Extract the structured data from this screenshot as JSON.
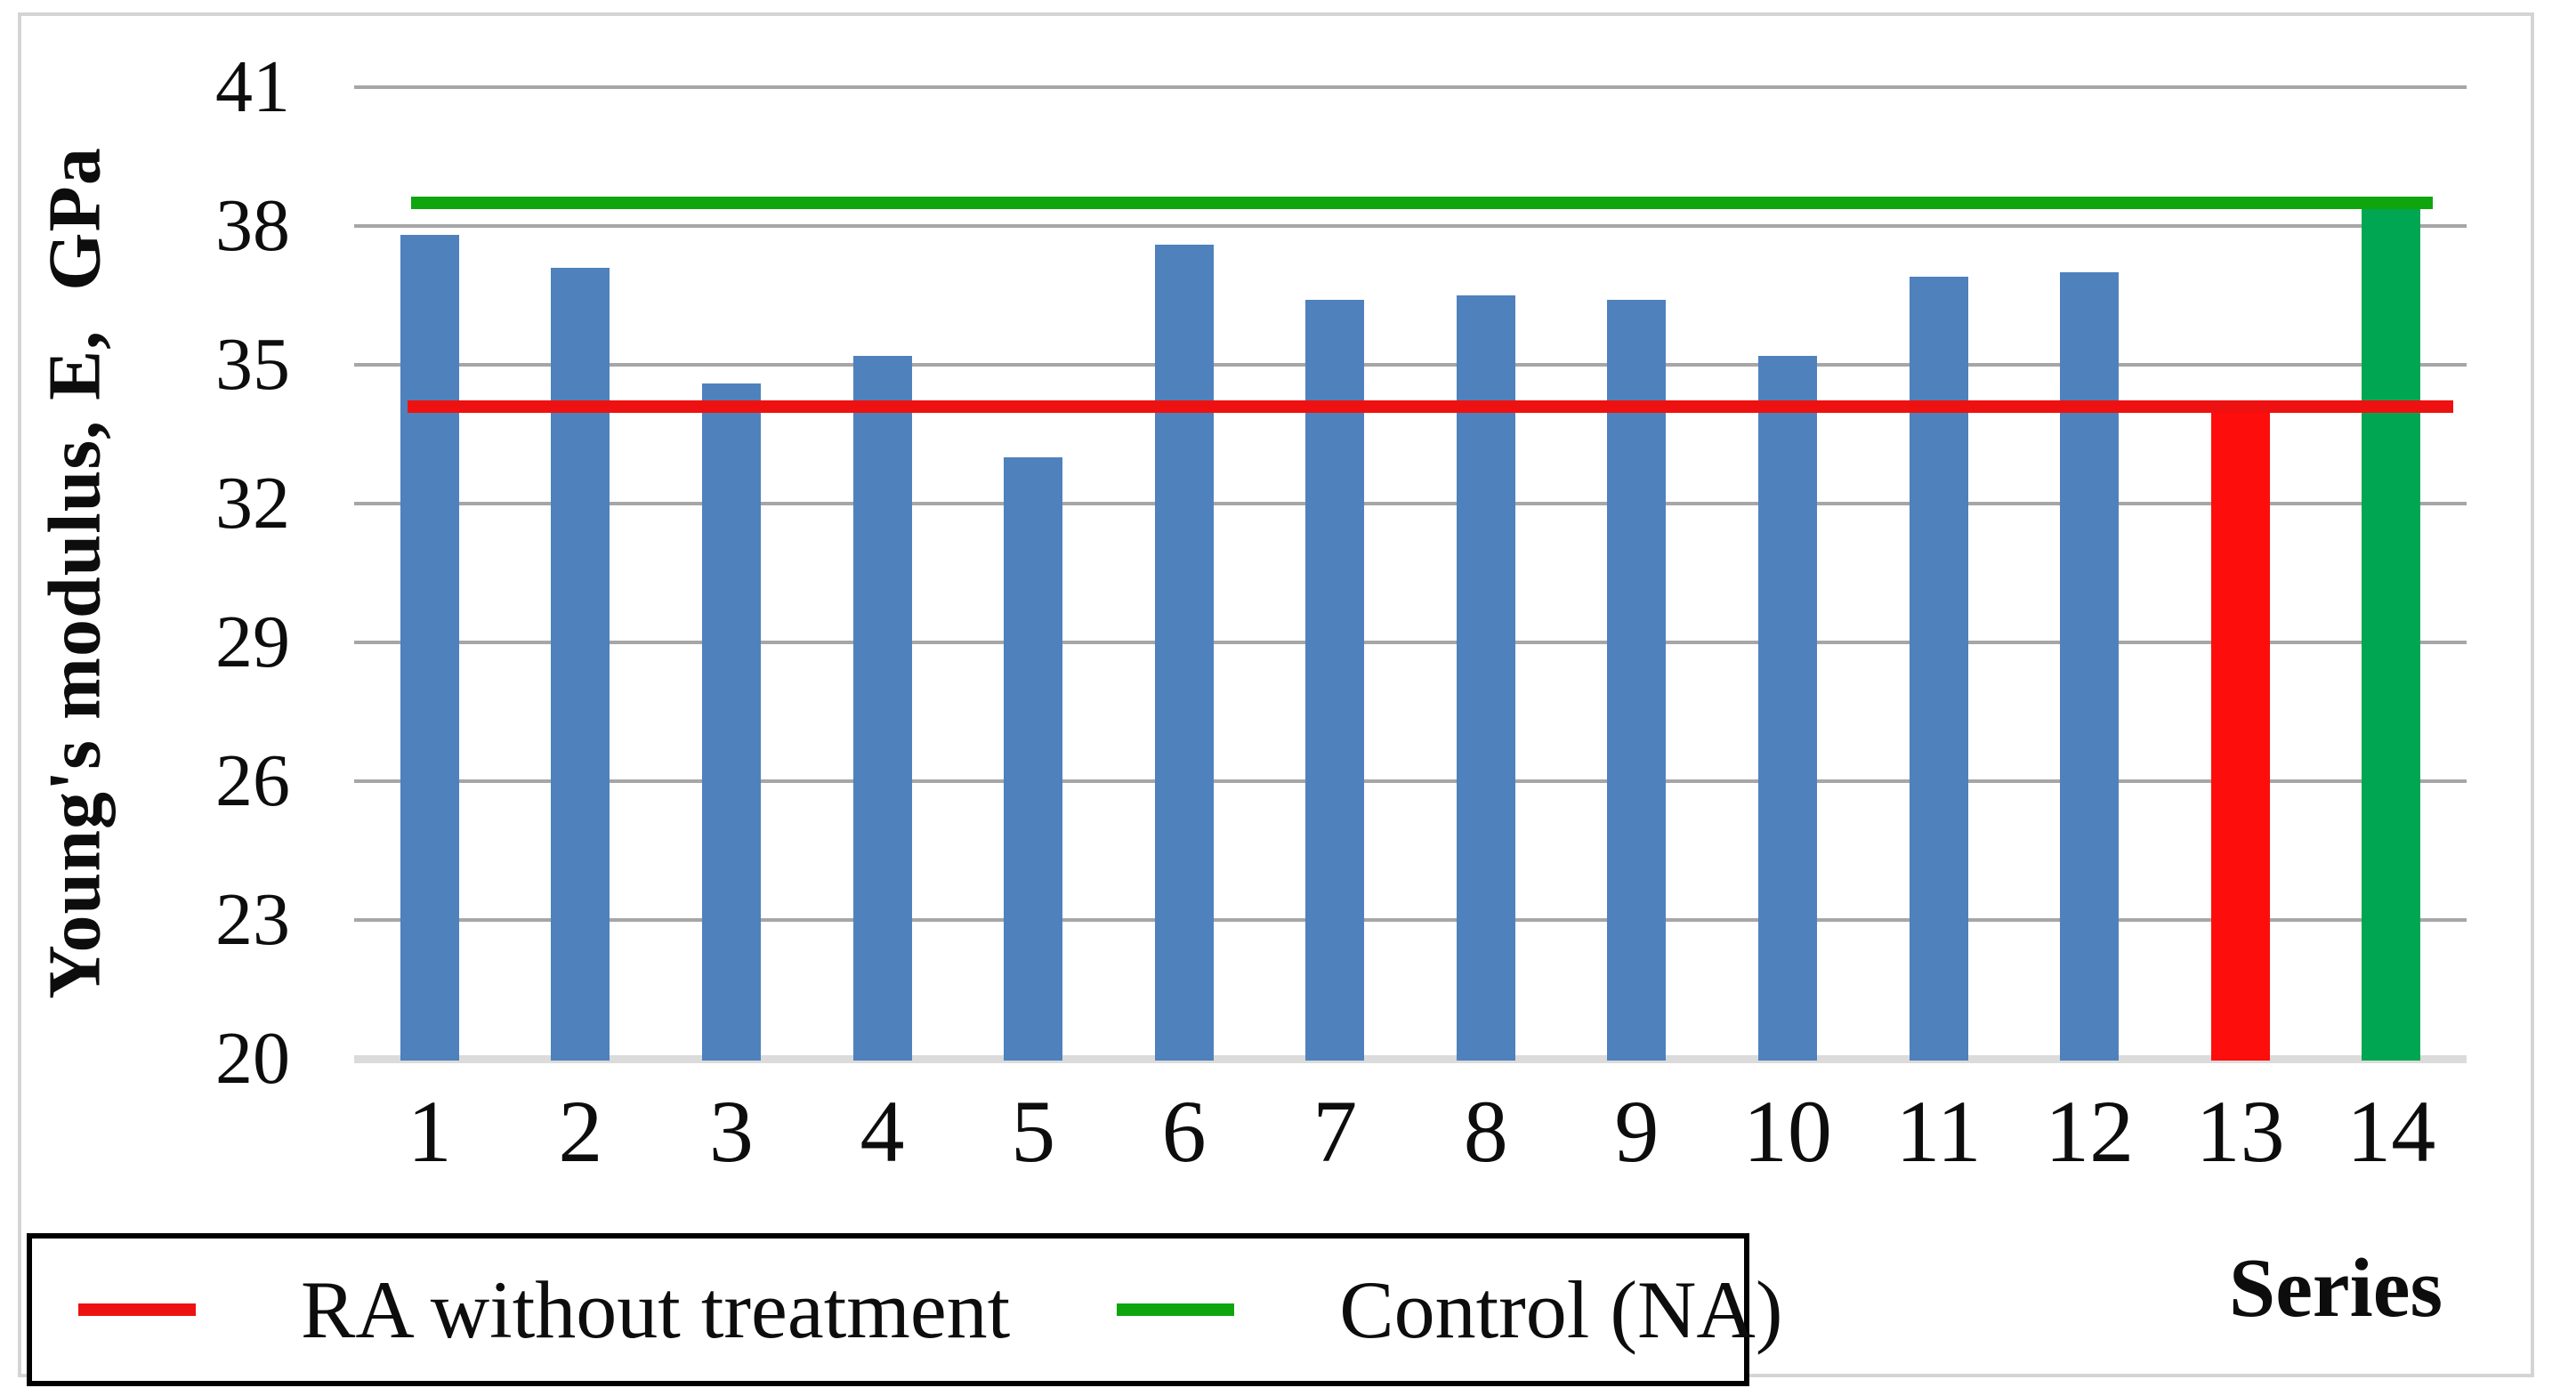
{
  "chart_data": {
    "type": "bar",
    "title": "",
    "ylabel": "Young's modulus, E,  GPa",
    "xlabel": "Series",
    "categories": [
      "1",
      "2",
      "3",
      "4",
      "5",
      "6",
      "7",
      "8",
      "9",
      "10",
      "11",
      "12",
      "13",
      "14"
    ],
    "values": [
      37.8,
      37.1,
      34.6,
      35.2,
      33.0,
      37.6,
      36.4,
      36.5,
      36.4,
      35.2,
      36.9,
      37.0,
      34.1,
      38.5
    ],
    "bar_colors": [
      "#4f81bd",
      "#4f81bd",
      "#4f81bd",
      "#4f81bd",
      "#4f81bd",
      "#4f81bd",
      "#4f81bd",
      "#4f81bd",
      "#4f81bd",
      "#4f81bd",
      "#4f81bd",
      "#4f81bd",
      "#fe0d0d",
      "#00a651"
    ],
    "ylim": [
      20,
      41
    ],
    "yticks": [
      41,
      38,
      35,
      32,
      29,
      26,
      23,
      20
    ],
    "grid": true,
    "legend_position": "bottom-left",
    "reference_lines": [
      {
        "label": "RA without treatment",
        "value": 34.1,
        "color": "#ee1111"
      },
      {
        "label": "Control (NA)",
        "value": 38.5,
        "color": "#0fa50f"
      }
    ]
  },
  "colors": {
    "gridline": "#a6a6a6",
    "baseline": "#dbdbdb",
    "frame": "#d4d4d4"
  }
}
